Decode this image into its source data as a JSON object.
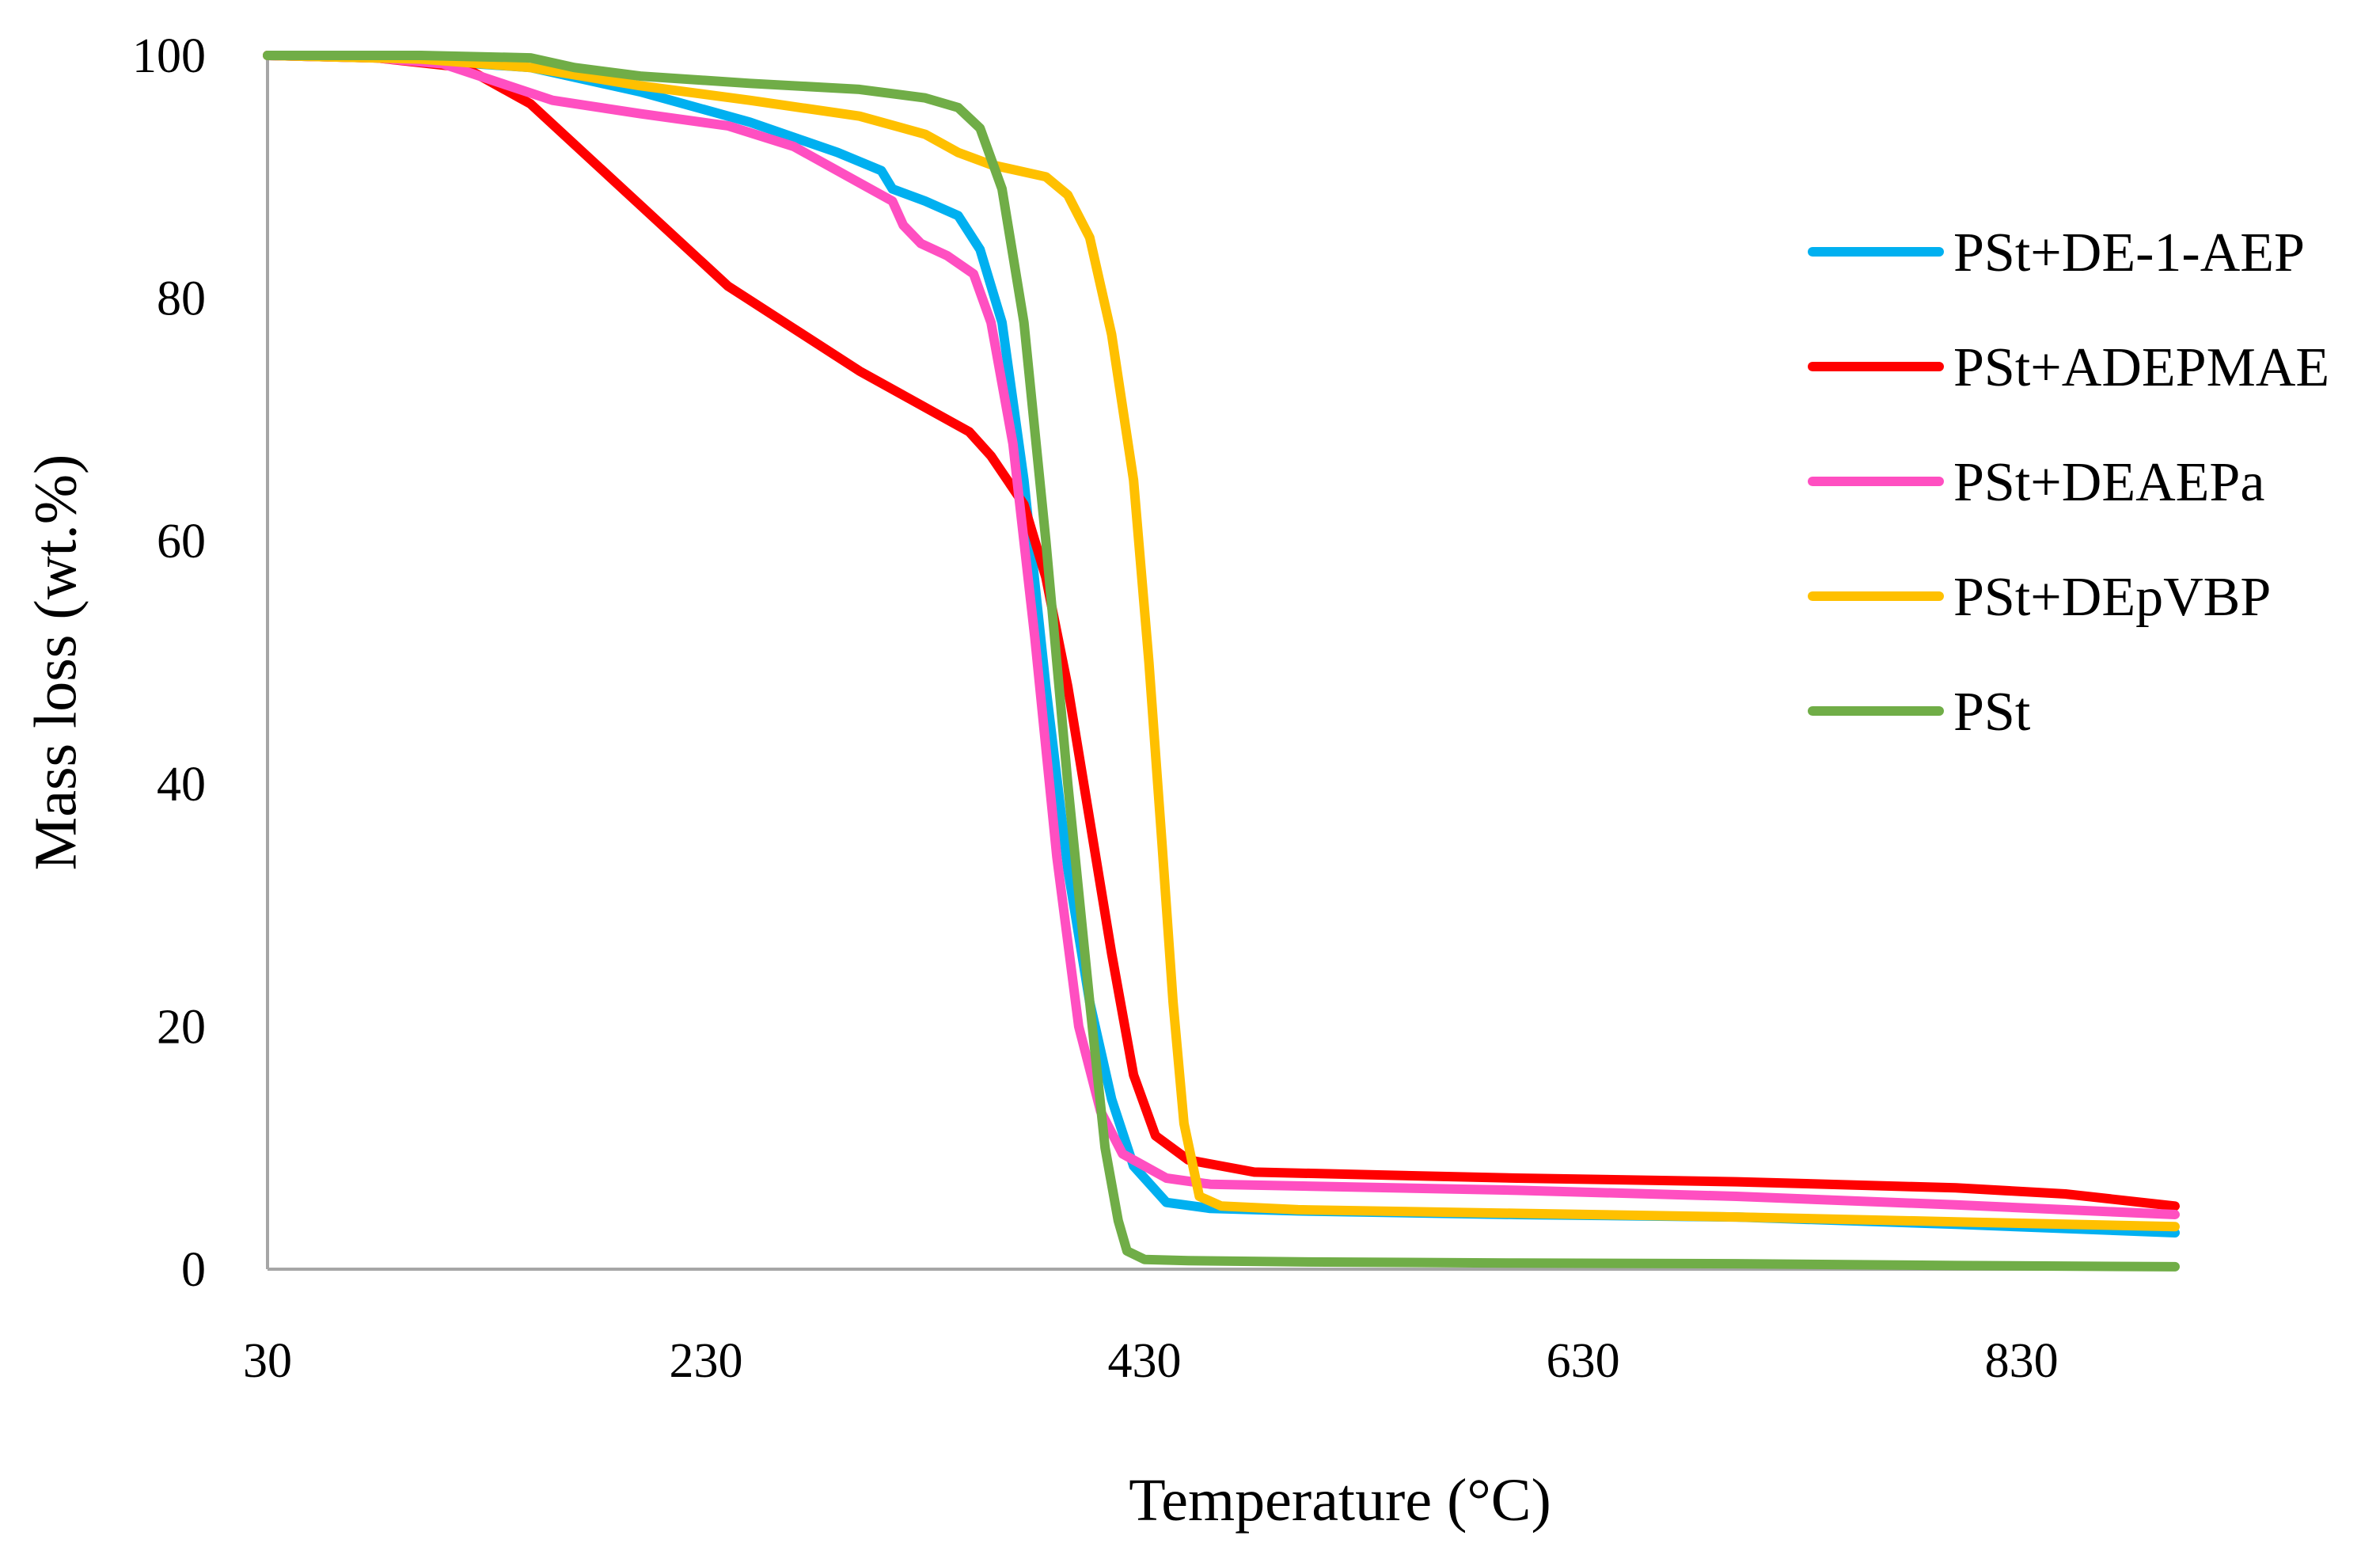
{
  "chart_data": {
    "type": "line",
    "title": "",
    "xlabel": "Temperature (°C)",
    "ylabel": "Mass loss (wt.%)",
    "xlim": [
      30,
      900
    ],
    "ylim": [
      0,
      100
    ],
    "x_ticks": [
      30,
      230,
      430,
      630,
      830
    ],
    "y_ticks": [
      0,
      20,
      40,
      60,
      80,
      100
    ],
    "grid": false,
    "legend_position": "right",
    "series": [
      {
        "name": "PSt+DE-1-AEP",
        "color": "#00b0f0",
        "points": [
          [
            30,
            100
          ],
          [
            80,
            99.8
          ],
          [
            110,
            99.5
          ],
          [
            150,
            99
          ],
          [
            200,
            97
          ],
          [
            250,
            94.5
          ],
          [
            290,
            92
          ],
          [
            310,
            90.5
          ],
          [
            315,
            89
          ],
          [
            330,
            88
          ],
          [
            345,
            86.8
          ],
          [
            355,
            84
          ],
          [
            365,
            78
          ],
          [
            375,
            65
          ],
          [
            385,
            48
          ],
          [
            395,
            33
          ],
          [
            405,
            22
          ],
          [
            415,
            14
          ],
          [
            425,
            8.5
          ],
          [
            440,
            5.5
          ],
          [
            460,
            5
          ],
          [
            500,
            4.8
          ],
          [
            600,
            4.5
          ],
          [
            700,
            4.3
          ],
          [
            800,
            3.7
          ],
          [
            900,
            3
          ]
        ]
      },
      {
        "name": "PSt+ADEPMAE",
        "color": "#ff0000",
        "points": [
          [
            30,
            100
          ],
          [
            80,
            99.8
          ],
          [
            120,
            99
          ],
          [
            150,
            96
          ],
          [
            180,
            91
          ],
          [
            210,
            86
          ],
          [
            240,
            81
          ],
          [
            270,
            77.5
          ],
          [
            300,
            74
          ],
          [
            330,
            71
          ],
          [
            350,
            69
          ],
          [
            360,
            67
          ],
          [
            375,
            63
          ],
          [
            385,
            57
          ],
          [
            395,
            48
          ],
          [
            405,
            37
          ],
          [
            415,
            26
          ],
          [
            425,
            16
          ],
          [
            435,
            11
          ],
          [
            450,
            9
          ],
          [
            480,
            8
          ],
          [
            600,
            7.5
          ],
          [
            700,
            7.2
          ],
          [
            800,
            6.7
          ],
          [
            850,
            6.2
          ],
          [
            900,
            5.2
          ]
        ]
      },
      {
        "name": "PSt+DEAEPa",
        "color": "#ff4fc1",
        "points": [
          [
            30,
            100
          ],
          [
            80,
            99.8
          ],
          [
            110,
            99.3
          ],
          [
            140,
            97.5
          ],
          [
            160,
            96.3
          ],
          [
            200,
            95.2
          ],
          [
            240,
            94.2
          ],
          [
            270,
            92.5
          ],
          [
            300,
            89.5
          ],
          [
            315,
            88
          ],
          [
            320,
            86
          ],
          [
            328,
            84.5
          ],
          [
            340,
            83.5
          ],
          [
            352,
            82
          ],
          [
            360,
            78
          ],
          [
            370,
            68
          ],
          [
            380,
            52
          ],
          [
            390,
            34
          ],
          [
            400,
            20
          ],
          [
            410,
            13
          ],
          [
            420,
            9.5
          ],
          [
            440,
            7.5
          ],
          [
            460,
            7
          ],
          [
            600,
            6.5
          ],
          [
            700,
            6
          ],
          [
            800,
            5.3
          ],
          [
            900,
            4.5
          ]
        ]
      },
      {
        "name": "PSt+DEpVBP",
        "color": "#ffc000",
        "points": [
          [
            30,
            100
          ],
          [
            100,
            99.7
          ],
          [
            150,
            99
          ],
          [
            200,
            97.5
          ],
          [
            250,
            96.3
          ],
          [
            300,
            95
          ],
          [
            330,
            93.5
          ],
          [
            345,
            92
          ],
          [
            360,
            91
          ],
          [
            385,
            90
          ],
          [
            395,
            88.5
          ],
          [
            405,
            85
          ],
          [
            415,
            77
          ],
          [
            425,
            65
          ],
          [
            432,
            50
          ],
          [
            438,
            35
          ],
          [
            443,
            22
          ],
          [
            448,
            12
          ],
          [
            455,
            6
          ],
          [
            465,
            5.2
          ],
          [
            500,
            4.9
          ],
          [
            600,
            4.6
          ],
          [
            700,
            4.3
          ],
          [
            800,
            3.9
          ],
          [
            900,
            3.5
          ]
        ]
      },
      {
        "name": "PSt",
        "color": "#70ad47",
        "points": [
          [
            30,
            100
          ],
          [
            100,
            100
          ],
          [
            150,
            99.8
          ],
          [
            170,
            99
          ],
          [
            200,
            98.3
          ],
          [
            250,
            97.7
          ],
          [
            300,
            97.2
          ],
          [
            330,
            96.5
          ],
          [
            345,
            95.7
          ],
          [
            355,
            94
          ],
          [
            365,
            89
          ],
          [
            375,
            78
          ],
          [
            385,
            60
          ],
          [
            395,
            40
          ],
          [
            405,
            22
          ],
          [
            412,
            10
          ],
          [
            418,
            4
          ],
          [
            422,
            1.5
          ],
          [
            430,
            0.8
          ],
          [
            450,
            0.7
          ],
          [
            500,
            0.6
          ],
          [
            600,
            0.5
          ],
          [
            700,
            0.45
          ],
          [
            800,
            0.3
          ],
          [
            900,
            0.2
          ]
        ]
      }
    ]
  }
}
